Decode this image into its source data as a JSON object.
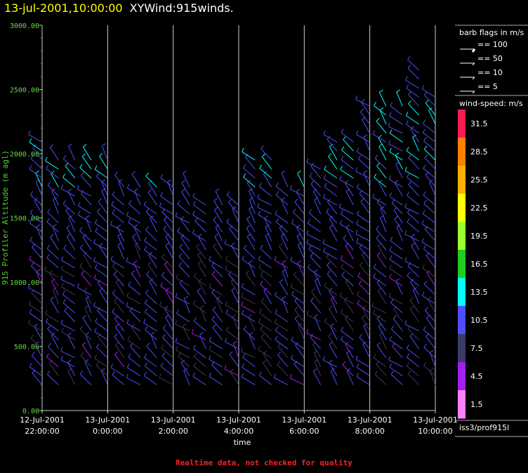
{
  "header": {
    "date": "13-jul-2001,10:00:00",
    "title": "XYWind:915winds."
  },
  "footer": {
    "note": "Realtime data, not checked for quality"
  },
  "legend": {
    "barb_title": "barb flags in m/s",
    "barb_flags": [
      "== 100",
      "== 50",
      "== 10",
      "== 5"
    ],
    "speed_title": "wind-speed: m/s",
    "speed_bins": [
      {
        "label": "31.5",
        "color": "#ff1a4d"
      },
      {
        "label": "28.5",
        "color": "#ff8000"
      },
      {
        "label": "25.5",
        "color": "#ffb000"
      },
      {
        "label": "22.5",
        "color": "#ffff00"
      },
      {
        "label": "19.5",
        "color": "#99ff33"
      },
      {
        "label": "16.5",
        "color": "#22cc22"
      },
      {
        "label": "13.5",
        "color": "#00ffff"
      },
      {
        "label": "10.5",
        "color": "#4d4dff"
      },
      {
        "label": "7.5",
        "color": "#3a3a66"
      },
      {
        "label": "4.5",
        "color": "#a020f0"
      },
      {
        "label": "1.5",
        "color": "#ff80ff"
      }
    ],
    "source": "iss3/prof915l"
  },
  "chart_data": {
    "type": "scatter",
    "ylabel": "915 Profiler Altitude (m agl)",
    "xlabel": "time",
    "ylim": [
      0,
      3000
    ],
    "y_ticks": [
      "0.00",
      "500.00",
      "1000.00",
      "1500.00",
      "2000.00",
      "2500.00",
      "3000.00"
    ],
    "x_ticks": [
      {
        "line1": "12-Jul-2001",
        "line2": "22:00:00"
      },
      {
        "line1": "13-Jul-2001",
        "line2": "0:00:00"
      },
      {
        "line1": "13-Jul-2001",
        "line2": "2:00:00"
      },
      {
        "line1": "13-Jul-2001",
        "line2": "4:00:00"
      },
      {
        "line1": "13-Jul-2001",
        "line2": "6:00:00"
      },
      {
        "line1": "13-Jul-2001",
        "line2": "8:00:00"
      },
      {
        "line1": "13-Jul-2001",
        "line2": "10:00:00"
      }
    ],
    "x_hours": [
      -2,
      0,
      2,
      4,
      6,
      8,
      10
    ],
    "grid": true,
    "columns": [
      {
        "t": -2.0,
        "top": 2100
      },
      {
        "t": -1.5,
        "top": 2000
      },
      {
        "t": -1.0,
        "top": 2000
      },
      {
        "t": -0.5,
        "top": 1950
      },
      {
        "t": 0.0,
        "top": 1950
      },
      {
        "t": 0.5,
        "top": 1800
      },
      {
        "t": 1.0,
        "top": 1800
      },
      {
        "t": 1.5,
        "top": 1750
      },
      {
        "t": 2.0,
        "top": 1800
      },
      {
        "t": 2.5,
        "top": 1800
      },
      {
        "t": 3.0,
        "top": 1650
      },
      {
        "t": 3.5,
        "top": 1600
      },
      {
        "t": 4.0,
        "top": 1600
      },
      {
        "t": 4.5,
        "top": 2000
      },
      {
        "t": 5.0,
        "top": 2000
      },
      {
        "t": 5.5,
        "top": 1800
      },
      {
        "t": 6.0,
        "top": 1800
      },
      {
        "t": 6.5,
        "top": 1900
      },
      {
        "t": 7.0,
        "top": 2100
      },
      {
        "t": 7.5,
        "top": 2100
      },
      {
        "t": 8.0,
        "top": 2400
      },
      {
        "t": 8.5,
        "top": 2400
      },
      {
        "t": 9.0,
        "top": 2400
      },
      {
        "t": 9.5,
        "top": 2700
      },
      {
        "t": 10.0,
        "top": 2500
      }
    ]
  }
}
